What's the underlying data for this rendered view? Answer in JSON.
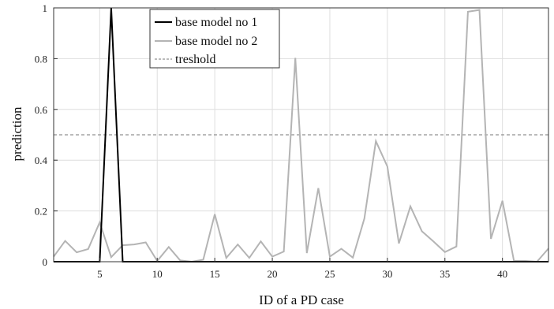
{
  "chart_data": {
    "type": "line",
    "title": "",
    "xlabel": "ID of a PD case",
    "ylabel": "prediction",
    "xlim": [
      1,
      44
    ],
    "ylim": [
      0,
      1
    ],
    "xticks": [
      5,
      10,
      15,
      20,
      25,
      30,
      35,
      40
    ],
    "yticks": [
      0,
      0.2,
      0.4,
      0.6,
      0.8,
      1
    ],
    "ytick_labels": [
      "0",
      "0.2",
      "0.4",
      "0.6",
      "0.8",
      "1"
    ],
    "grid": true,
    "legend_position": "top-center",
    "x": [
      1,
      2,
      3,
      4,
      5,
      6,
      7,
      8,
      9,
      10,
      11,
      12,
      13,
      14,
      15,
      16,
      17,
      18,
      19,
      20,
      21,
      22,
      23,
      24,
      25,
      26,
      27,
      28,
      29,
      30,
      31,
      32,
      33,
      34,
      35,
      36,
      37,
      38,
      39,
      40,
      41,
      42,
      43,
      44
    ],
    "series": [
      {
        "name": "base model no 1",
        "color": "#000000",
        "style": "solid",
        "values": [
          0,
          0,
          0,
          0,
          0,
          1.0,
          0,
          0,
          0,
          0,
          0,
          0,
          0,
          0,
          0,
          0,
          0,
          0,
          0,
          0,
          0,
          0,
          0,
          0,
          0,
          0,
          0,
          0,
          0,
          0,
          0,
          0,
          0,
          0,
          0,
          0,
          0,
          0,
          0,
          0,
          0,
          0,
          0,
          0
        ]
      },
      {
        "name": "base model no 2",
        "color": "#b4b4b4",
        "style": "solid",
        "values": [
          0.02,
          0.082,
          0.037,
          0.05,
          0.155,
          0.018,
          0.065,
          0.068,
          0.076,
          0.003,
          0.058,
          0.005,
          0.0,
          0.008,
          0.187,
          0.015,
          0.068,
          0.015,
          0.08,
          0.02,
          0.04,
          0.803,
          0.034,
          0.29,
          0.02,
          0.051,
          0.016,
          0.17,
          0.475,
          0.375,
          0.072,
          0.218,
          0.12,
          0.08,
          0.038,
          0.06,
          0.985,
          0.992,
          0.09,
          0.24,
          0.003,
          0.003,
          0.0,
          0.052
        ]
      },
      {
        "name": "treshold",
        "color": "#777777",
        "style": "dashed",
        "values": [
          0.5,
          0.5,
          0.5,
          0.5,
          0.5,
          0.5,
          0.5,
          0.5,
          0.5,
          0.5,
          0.5,
          0.5,
          0.5,
          0.5,
          0.5,
          0.5,
          0.5,
          0.5,
          0.5,
          0.5,
          0.5,
          0.5,
          0.5,
          0.5,
          0.5,
          0.5,
          0.5,
          0.5,
          0.5,
          0.5,
          0.5,
          0.5,
          0.5,
          0.5,
          0.5,
          0.5,
          0.5,
          0.5,
          0.5,
          0.5,
          0.5,
          0.5,
          0.5,
          0.5
        ]
      }
    ]
  }
}
